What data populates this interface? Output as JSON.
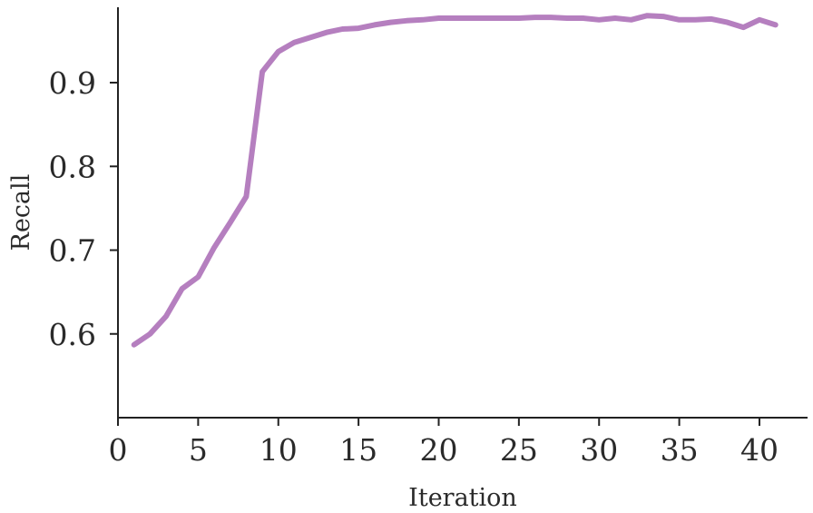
{
  "chart_data": {
    "type": "line",
    "title": "",
    "xlabel": "Iteration",
    "ylabel": "Recall",
    "xlim": [
      0,
      43
    ],
    "ylim": [
      0.5,
      0.99
    ],
    "x_ticks": [
      0,
      5,
      10,
      15,
      20,
      25,
      30,
      35,
      40
    ],
    "y_ticks": [
      0.6,
      0.7,
      0.8,
      0.9
    ],
    "x_tick_labels": [
      "0",
      "5",
      "10",
      "15",
      "20",
      "25",
      "30",
      "35",
      "40"
    ],
    "y_tick_labels": [
      "0.6",
      "0.7",
      "0.8",
      "0.9"
    ],
    "grid": false,
    "series": [
      {
        "color": "#b57fbf",
        "x": [
          1,
          2,
          3,
          4,
          5,
          6,
          7,
          8,
          9,
          10,
          11,
          12,
          13,
          14,
          15,
          16,
          17,
          18,
          19,
          20,
          21,
          22,
          23,
          24,
          25,
          26,
          27,
          28,
          29,
          30,
          31,
          32,
          33,
          34,
          35,
          36,
          37,
          38,
          39,
          40,
          41
        ],
        "values": [
          0.587,
          0.6,
          0.621,
          0.654,
          0.668,
          0.703,
          0.733,
          0.764,
          0.913,
          0.937,
          0.948,
          0.954,
          0.96,
          0.964,
          0.965,
          0.969,
          0.972,
          0.974,
          0.975,
          0.977,
          0.977,
          0.977,
          0.977,
          0.977,
          0.977,
          0.978,
          0.978,
          0.977,
          0.977,
          0.975,
          0.977,
          0.975,
          0.98,
          0.979,
          0.975,
          0.975,
          0.976,
          0.972,
          0.966,
          0.975,
          0.969
        ]
      }
    ]
  }
}
